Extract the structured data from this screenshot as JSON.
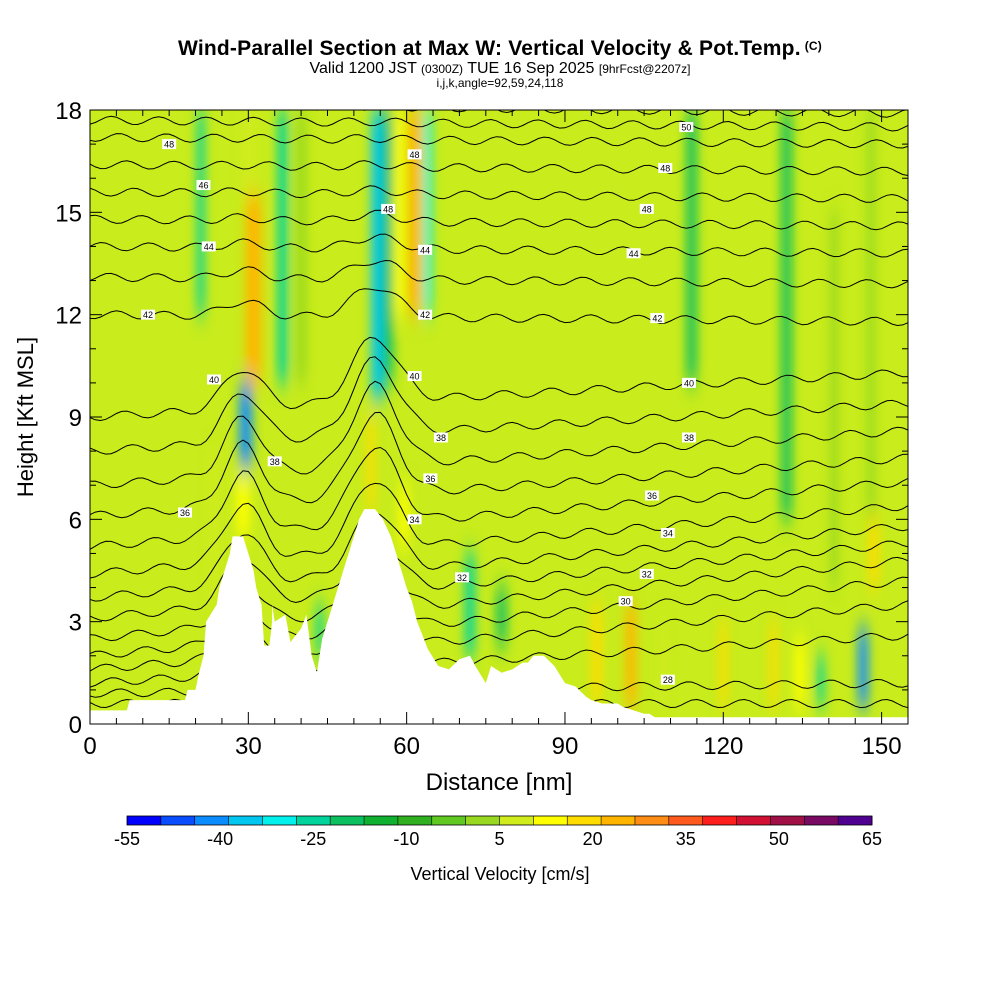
{
  "header": {
    "title": "Wind-Parallel Section at Max W: Vertical Velocity & Pot.Temp.",
    "title_mark": "(C)",
    "valid_prefix": "Valid 1200 JST",
    "valid_utc": "(0300Z)",
    "valid_date": "TUE 16 Sep 2025",
    "valid_fcst": "[9hrFcst@2207z]",
    "params": "i,j,k,angle=92,59,24,118"
  },
  "chart_data": {
    "type": "heatmap",
    "title": "Wind-Parallel Section at Max W: Vertical Velocity & Pot.Temp.",
    "xlabel": "Distance [nm]",
    "ylabel": "Height [Kft MSL]",
    "xlim": [
      0,
      155
    ],
    "ylim": [
      0,
      18
    ],
    "x_ticks": [
      "0",
      "30",
      "60",
      "90",
      "120",
      "150"
    ],
    "y_ticks": [
      "0",
      "3",
      "6",
      "9",
      "12",
      "15",
      "18"
    ],
    "colorbar": {
      "label": "Vertical Velocity [cm/s]",
      "range": [
        -55,
        65
      ],
      "step": 7.5,
      "tick_labels": [
        "-55",
        "-40",
        "-25",
        "-10",
        "5",
        "20",
        "35",
        "50",
        "65"
      ],
      "colors": [
        "#0000ff",
        "#0a4cff",
        "#0a8cff",
        "#00c6f0",
        "#00f0ec",
        "#00d49c",
        "#0cc060",
        "#10b030",
        "#30b020",
        "#60c820",
        "#98d820",
        "#d0ec1c",
        "#ffff00",
        "#ffdc00",
        "#ffb400",
        "#ff8c14",
        "#ff5a1e",
        "#ff1e1e",
        "#d21034",
        "#a01046",
        "#780a64",
        "#500090"
      ]
    },
    "terrain_profile": {
      "x": [
        0,
        7,
        7.5,
        18,
        18.5,
        20,
        20.5,
        21.5,
        22,
        24,
        24.5,
        26.5,
        27,
        29,
        30,
        31,
        31.5,
        32.5,
        33,
        34,
        34.5,
        34.5,
        35,
        37,
        38,
        39,
        40,
        41,
        42,
        43,
        44,
        45,
        46,
        47,
        48,
        49,
        50,
        51,
        52,
        53,
        54,
        55.5,
        57,
        58,
        59,
        60,
        61,
        62,
        63,
        64,
        66,
        68,
        70,
        72,
        73,
        75,
        76,
        78,
        80,
        82,
        83,
        84,
        86,
        88,
        90,
        92,
        94,
        95,
        97,
        99,
        100,
        101,
        103,
        105,
        106,
        107,
        108,
        110,
        155
      ],
      "height": [
        0.4,
        0.4,
        0.7,
        0.7,
        1,
        1,
        1.4,
        2,
        3,
        3.5,
        4,
        5,
        5.5,
        5.5,
        5,
        4.5,
        4,
        3.5,
        2.3,
        2.3,
        3,
        3.5,
        3,
        3.2,
        2.4,
        2.6,
        2.8,
        3.2,
        2,
        1.5,
        2.5,
        3,
        3.5,
        4,
        4.5,
        5,
        5.5,
        6,
        6.3,
        6.3,
        6.3,
        6,
        5.5,
        5,
        4.5,
        4,
        3.6,
        3,
        2.6,
        2.2,
        1.7,
        1.6,
        1.9,
        2,
        1.7,
        1.2,
        1.7,
        1.5,
        1.6,
        1.8,
        1.8,
        2,
        2,
        1.7,
        1.2,
        1.1,
        0.8,
        0.7,
        0.6,
        0.6,
        0.6,
        0.5,
        0.4,
        0.3,
        0.3,
        0.2,
        0.2,
        0.2,
        0.2
      ]
    },
    "velocity_columns": [
      {
        "x": 23.5,
        "width": 2,
        "y_base": 3.5,
        "y_top": 8,
        "value": 30
      },
      {
        "x": 29,
        "width": 2.5,
        "y_base": 5.5,
        "y_top": 7.3,
        "value": 42
      },
      {
        "x": 29.5,
        "width": 2.5,
        "y_base": 7.5,
        "y_top": 10,
        "value": -40
      },
      {
        "x": 31,
        "width": 3,
        "y_base": 10,
        "y_top": 15.5,
        "value": 50
      },
      {
        "x": 30,
        "width": 3,
        "y_base": 15.5,
        "y_top": 18,
        "value": 28
      },
      {
        "x": 21,
        "width": 1.5,
        "y_base": 12,
        "y_top": 18,
        "value": -12
      },
      {
        "x": 36.5,
        "width": 2,
        "y_base": 10,
        "y_top": 18,
        "value": -14
      },
      {
        "x": 40,
        "width": 2,
        "y_base": 10,
        "y_top": 18,
        "value": 24
      },
      {
        "x": 43.5,
        "width": 1.5,
        "y_base": 2,
        "y_top": 3.5,
        "value": -15
      },
      {
        "x": 53.2,
        "width": 1.5,
        "y_base": 6.3,
        "y_top": 9,
        "value": 48
      },
      {
        "x": 54.5,
        "width": 2.5,
        "y_base": 9.5,
        "y_top": 18,
        "value": -30
      },
      {
        "x": 56.5,
        "width": 2,
        "y_base": 10,
        "y_top": 18,
        "value": -10
      },
      {
        "x": 58.5,
        "width": 2,
        "y_base": 12,
        "y_top": 18,
        "value": 42
      },
      {
        "x": 61.5,
        "width": 2.5,
        "y_base": 12,
        "y_top": 18,
        "value": 50
      },
      {
        "x": 64,
        "width": 1.5,
        "y_base": 12,
        "y_top": 18,
        "value": -20
      },
      {
        "x": 59.5,
        "width": 2,
        "y_base": 5.2,
        "y_top": 7,
        "value": 38
      },
      {
        "x": 72,
        "width": 2,
        "y_base": 2,
        "y_top": 5,
        "value": -14
      },
      {
        "x": 78,
        "width": 2,
        "y_base": 2.3,
        "y_top": 4,
        "value": -10
      },
      {
        "x": 96,
        "width": 2,
        "y_base": 0.6,
        "y_top": 3.5,
        "value": 45
      },
      {
        "x": 102.5,
        "width": 2,
        "y_base": 0.5,
        "y_top": 3.5,
        "value": 50
      },
      {
        "x": 108.5,
        "width": 1.5,
        "y_base": 0.5,
        "y_top": 3,
        "value": 30
      },
      {
        "x": 120,
        "width": 1.5,
        "y_base": 0.5,
        "y_top": 3,
        "value": 46
      },
      {
        "x": 129.5,
        "width": 1.5,
        "y_base": 0.5,
        "y_top": 3,
        "value": 48
      },
      {
        "x": 134.5,
        "width": 2,
        "y_base": 0.5,
        "y_top": 2.5,
        "value": 38
      },
      {
        "x": 138.5,
        "width": 1.5,
        "y_base": 0.5,
        "y_top": 2,
        "value": -14
      },
      {
        "x": 146.5,
        "width": 2,
        "y_base": 0.5,
        "y_top": 2.8,
        "value": -34
      },
      {
        "x": 148.5,
        "width": 2,
        "y_base": 4,
        "y_top": 6,
        "value": 48
      },
      {
        "x": 148,
        "width": 1.5,
        "y_base": 6,
        "y_top": 18,
        "value": 24
      },
      {
        "x": 141,
        "width": 1.5,
        "y_base": 4,
        "y_top": 15,
        "value": 24
      },
      {
        "x": 132,
        "width": 2,
        "y_base": 6,
        "y_top": 18,
        "value": -8
      },
      {
        "x": 114,
        "width": 2,
        "y_base": 10,
        "y_top": 18,
        "value": -8
      }
    ],
    "isentropes": [
      {
        "level": 28,
        "y_left": 0.6,
        "y_right": 0.6
      },
      {
        "level": 29,
        "y_left": 0.9,
        "y_right": 1.2
      },
      {
        "level": 30,
        "y_left": 1.2,
        "y_right": 2.6
      },
      {
        "level": 31,
        "y_left": 1.6,
        "y_right": 3.5
      },
      {
        "level": 32,
        "y_left": 2,
        "y_right": 4.2
      },
      {
        "level": 33,
        "y_left": 2.5,
        "y_right": 4.8
      },
      {
        "level": 34,
        "y_left": 3.1,
        "y_right": 5.3
      },
      {
        "level": 35,
        "y_left": 3.7,
        "y_right": 5.8
      },
      {
        "level": 36,
        "y_left": 4.4,
        "y_right": 6.4
      },
      {
        "level": 37,
        "y_left": 5.2,
        "y_right": 7.1
      },
      {
        "level": 38,
        "y_left": 6.1,
        "y_right": 7.8
      },
      {
        "level": 39,
        "y_left": 7,
        "y_right": 8.6
      },
      {
        "level": 40,
        "y_left": 8,
        "y_right": 9.4
      },
      {
        "level": 41,
        "y_left": 9,
        "y_right": 10.3
      },
      {
        "level": 42,
        "y_left": 12,
        "y_right": 11.8
      },
      {
        "level": 43,
        "y_left": 13.1,
        "y_right": 12.9
      },
      {
        "level": 44,
        "y_left": 14,
        "y_right": 13.8
      },
      {
        "level": 45,
        "y_left": 14.8,
        "y_right": 14.6
      },
      {
        "level": 46,
        "y_left": 15.6,
        "y_right": 15.4
      },
      {
        "level": 47,
        "y_left": 16.4,
        "y_right": 16.2
      },
      {
        "level": 48,
        "y_left": 17.2,
        "y_right": 17
      },
      {
        "level": 49,
        "y_left": 17.7,
        "y_right": 17.5
      },
      {
        "level": 50,
        "y_left": 18.2,
        "y_right": 17.9
      }
    ],
    "isentrope_labels": [
      {
        "text": "48",
        "x": 15,
        "y": 17
      },
      {
        "text": "46",
        "x": 21.5,
        "y": 15.8
      },
      {
        "text": "44",
        "x": 22.5,
        "y": 14
      },
      {
        "text": "42",
        "x": 11,
        "y": 12
      },
      {
        "text": "40",
        "x": 23.5,
        "y": 10.1
      },
      {
        "text": "38",
        "x": 35,
        "y": 7.7
      },
      {
        "text": "36",
        "x": 18,
        "y": 6.2
      },
      {
        "text": "48",
        "x": 61.5,
        "y": 16.7
      },
      {
        "text": "48",
        "x": 56.5,
        "y": 15.1
      },
      {
        "text": "44",
        "x": 63.5,
        "y": 13.9
      },
      {
        "text": "42",
        "x": 63.5,
        "y": 12
      },
      {
        "text": "40",
        "x": 61.5,
        "y": 10.2
      },
      {
        "text": "38",
        "x": 66.5,
        "y": 8.4
      },
      {
        "text": "36",
        "x": 64.5,
        "y": 7.2
      },
      {
        "text": "34",
        "x": 61.5,
        "y": 6
      },
      {
        "text": "32",
        "x": 70.5,
        "y": 4.3
      },
      {
        "text": "30",
        "x": 101.5,
        "y": 3.6
      },
      {
        "text": "28",
        "x": 109.5,
        "y": 1.3
      },
      {
        "text": "50",
        "x": 113,
        "y": 17.5
      },
      {
        "text": "48",
        "x": 109,
        "y": 16.3
      },
      {
        "text": "48",
        "x": 105.5,
        "y": 15.1
      },
      {
        "text": "44",
        "x": 103,
        "y": 13.8
      },
      {
        "text": "42",
        "x": 107.5,
        "y": 11.9
      },
      {
        "text": "40",
        "x": 113.5,
        "y": 10
      },
      {
        "text": "38",
        "x": 113.5,
        "y": 8.4
      },
      {
        "text": "36",
        "x": 106.5,
        "y": 6.7
      },
      {
        "text": "34",
        "x": 109.5,
        "y": 5.6
      },
      {
        "text": "32",
        "x": 105.5,
        "y": 4.4
      }
    ]
  }
}
